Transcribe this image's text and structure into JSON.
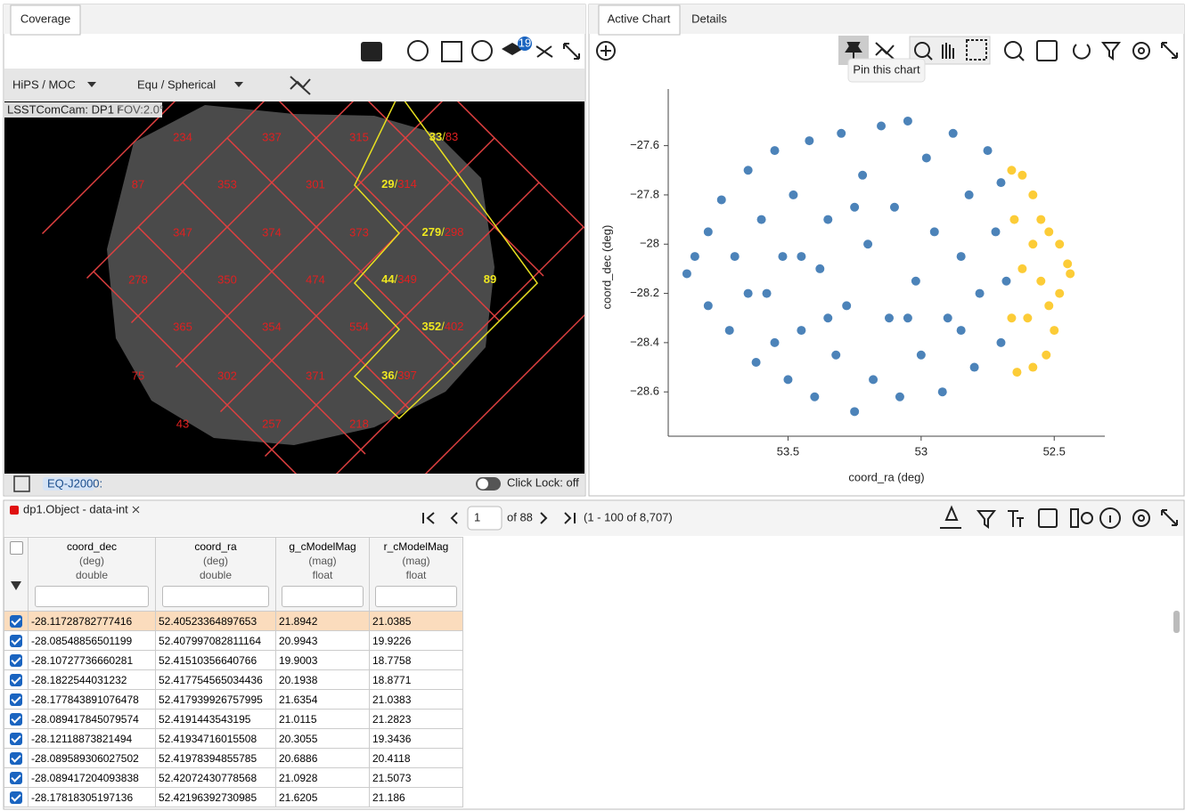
{
  "coverage": {
    "tab": "Coverage",
    "layers_badge": "19",
    "hips_menu": "HiPS / MOC",
    "coord_menu": "Equ / Spherical",
    "image_label": "LSSTComCam: DP1 r",
    "fov": "FOV:2.0°",
    "coord_system": "EQ-J2000:",
    "click_lock": "Click Lock: off",
    "separator": "/",
    "tiles": [
      "234",
      "337",
      "315",
      "87",
      "353",
      "301",
      "347",
      "374",
      "373",
      "278",
      "350",
      "474",
      "365",
      "354",
      "554",
      "75",
      "302",
      "371",
      "43",
      "257",
      "218"
    ],
    "selected_tiles": [
      {
        "count": "33",
        "total": "83"
      },
      {
        "count": "29",
        "total": "314"
      },
      {
        "count": "279",
        "total": "298"
      },
      {
        "count": "44",
        "total": "349"
      },
      {
        "count": "89"
      },
      {
        "count": "352",
        "total": "402"
      },
      {
        "count": "36",
        "total": "397"
      }
    ]
  },
  "chart_panel": {
    "tabs": [
      "Active Chart",
      "Details"
    ],
    "tooltip": "Pin this chart"
  },
  "chart_data": {
    "type": "scatter",
    "xlabel": "coord_ra (deg)",
    "ylabel": "coord_dec (deg)",
    "xlim": [
      53.95,
      52.31
    ],
    "ylim": [
      -28.78,
      -27.37
    ],
    "xticks": [
      53.5,
      53,
      52.5
    ],
    "yticks": [
      {
        "value": -27.6,
        "label": "−27.6"
      },
      {
        "value": -27.8,
        "label": "−27.8"
      },
      {
        "value": -28,
        "label": "−28"
      },
      {
        "value": -28.2,
        "label": "−28.2"
      },
      {
        "value": -28.4,
        "label": "−28.4"
      },
      {
        "value": -28.6,
        "label": "−28.6"
      }
    ],
    "series": [
      {
        "color": "#1f64a8",
        "x": [
          53.85,
          53.88,
          53.8,
          53.8,
          53.75,
          53.72,
          53.7,
          53.65,
          53.62,
          53.6,
          53.58,
          53.55,
          53.52,
          53.5,
          53.48,
          53.45,
          53.42,
          53.4,
          53.38,
          53.35,
          53.32,
          53.3,
          53.28,
          53.25,
          53.22,
          53.2,
          53.18,
          53.15,
          53.12,
          53.1,
          53.08,
          53.05,
          53.02,
          53.0,
          52.98,
          52.95,
          52.92,
          52.9,
          52.88,
          52.85,
          52.82,
          52.8,
          52.78,
          52.75,
          52.72,
          52.7,
          52.68,
          52.7,
          53.65,
          53.35,
          53.05,
          52.85,
          53.45,
          53.25,
          53.55
        ],
        "y": [
          -28.05,
          -28.12,
          -27.95,
          -28.25,
          -27.82,
          -28.35,
          -28.05,
          -27.7,
          -28.48,
          -27.9,
          -28.2,
          -27.62,
          -28.05,
          -28.55,
          -27.8,
          -28.35,
          -27.58,
          -28.62,
          -28.1,
          -27.9,
          -28.45,
          -27.55,
          -28.25,
          -28.68,
          -27.72,
          -28.0,
          -28.55,
          -27.52,
          -28.3,
          -27.85,
          -28.62,
          -27.5,
          -28.15,
          -28.45,
          -27.65,
          -27.95,
          -28.6,
          -28.3,
          -27.55,
          -28.05,
          -27.8,
          -28.5,
          -28.2,
          -27.62,
          -27.95,
          -28.4,
          -28.15,
          -27.75,
          -28.2,
          -28.3,
          -28.3,
          -28.35,
          -28.05,
          -27.85,
          -28.4
        ]
      },
      {
        "color": "#fbbf05",
        "x": [
          52.66,
          52.62,
          52.58,
          52.55,
          52.52,
          52.48,
          52.45,
          52.44,
          52.48,
          52.52,
          52.5,
          52.53,
          52.58,
          52.64,
          52.66,
          52.62,
          52.58,
          52.6,
          52.55,
          52.65
        ],
        "y": [
          -27.7,
          -27.72,
          -27.8,
          -27.9,
          -27.95,
          -28.0,
          -28.08,
          -28.12,
          -28.2,
          -28.25,
          -28.35,
          -28.45,
          -28.5,
          -28.52,
          -28.3,
          -28.1,
          -28.0,
          -28.3,
          -28.15,
          -27.9
        ]
      }
    ]
  },
  "table": {
    "tab": "dp1.Object - data-int",
    "page": "1",
    "of_pages": "of 88",
    "range": "(1 - 100 of 8,707)",
    "columns": [
      {
        "name": "coord_dec",
        "unit": "(deg)",
        "type": "double"
      },
      {
        "name": "coord_ra",
        "unit": "(deg)",
        "type": "double"
      },
      {
        "name": "g_cModelMag",
        "unit": "(mag)",
        "type": "float"
      },
      {
        "name": "r_cModelMag",
        "unit": "(mag)",
        "type": "float"
      }
    ],
    "rows": [
      [
        "-28.11728782777416",
        "52.40523364897653",
        "21.8942",
        "21.0385"
      ],
      [
        "-28.08548856501199",
        "52.407997082811164",
        "20.9943",
        "19.9226"
      ],
      [
        "-28.10727736660281",
        "52.41510356640766",
        "19.9003",
        "18.7758"
      ],
      [
        "-28.1822544031232",
        "52.417754565034436",
        "20.1938",
        "18.8771"
      ],
      [
        "-28.177843891076478",
        "52.417939926757995",
        "21.6354",
        "21.0383"
      ],
      [
        "-28.089417845079574",
        "52.4191443543195",
        "21.0115",
        "21.2823"
      ],
      [
        "-28.12118873821494",
        "52.41934716015508",
        "20.3055",
        "19.3436"
      ],
      [
        "-28.089589306027502",
        "52.41978394855785",
        "20.6886",
        "20.4118"
      ],
      [
        "-28.089417204093838",
        "52.42072430778568",
        "21.0928",
        "21.5073"
      ],
      [
        "-28.17818305197136",
        "52.42196392730985",
        "21.6205",
        "21.186"
      ]
    ]
  }
}
